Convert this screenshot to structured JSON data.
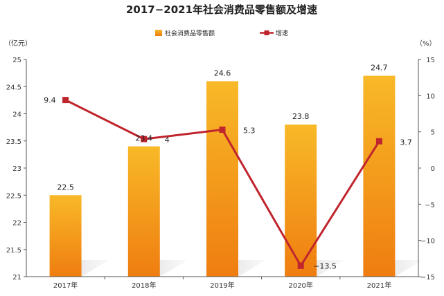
{
  "chart_data": {
    "type": "bar",
    "title": "2017−2021年社会消费品零售额及增速",
    "categories": [
      "2017年",
      "2018年",
      "2019年",
      "2020年",
      "2021年"
    ],
    "series": [
      {
        "name": "社会消费品零售额",
        "type": "bar",
        "axis": "left",
        "values": [
          22.5,
          23.4,
          24.6,
          23.8,
          24.7
        ],
        "labels": [
          "22.5",
          "23.4",
          "24.6",
          "23.8",
          "24.7"
        ]
      },
      {
        "name": "增速",
        "type": "line",
        "axis": "right",
        "values": [
          9.4,
          4,
          5.3,
          -13.5,
          3.7
        ],
        "labels": [
          "9.4",
          "4",
          "5.3",
          "−13.5",
          "3.7"
        ]
      }
    ],
    "y_left": {
      "unit": "（亿元）",
      "ylim": [
        21,
        25
      ],
      "ticks": [
        21,
        21.5,
        22,
        22.5,
        23,
        23.5,
        24,
        24.5,
        25
      ],
      "tick_labels": [
        "21",
        "21.5",
        "22",
        "22.5",
        "23",
        "23.5",
        "24",
        "24.5",
        "25"
      ]
    },
    "y_right": {
      "unit": "（%）",
      "ylim": [
        -15,
        15
      ],
      "ticks": [
        -15,
        -10,
        -5,
        0,
        5,
        10,
        15
      ],
      "tick_labels": [
        "−15",
        "−10",
        "−5",
        "0",
        "5",
        "10",
        "15"
      ]
    },
    "legend_position": "top",
    "grid": false,
    "colors": {
      "bar_top": "#f8b928",
      "bar_bottom": "#ef7d10",
      "line": "#c0242d"
    }
  }
}
